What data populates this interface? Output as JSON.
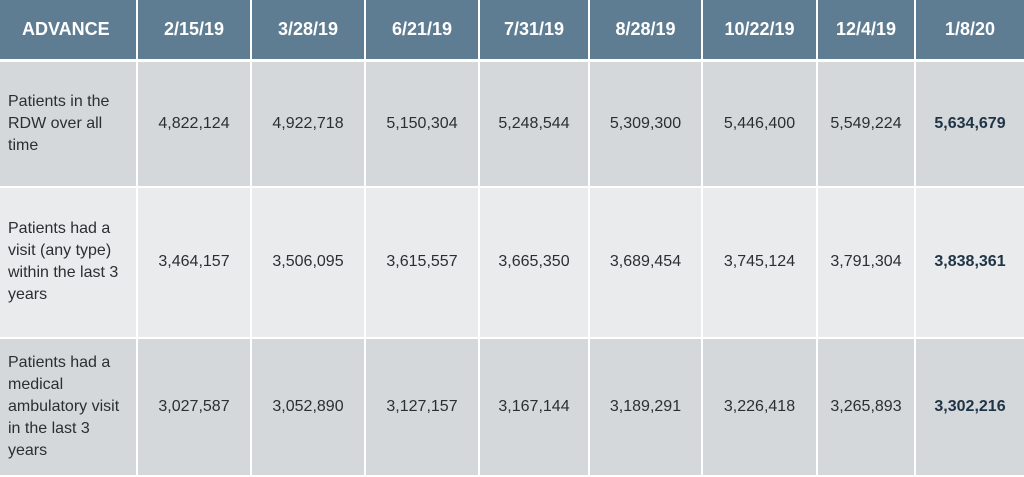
{
  "chart_data": {
    "type": "table",
    "corner_header": "ADVANCE",
    "columns": [
      "2/15/19",
      "3/28/19",
      "6/21/19",
      "7/31/19",
      "8/28/19",
      "10/22/19",
      "12/4/19",
      "1/8/20"
    ],
    "rows": [
      {
        "label": "Patients in the RDW over all time",
        "values": [
          "4,822,124",
          "4,922,718",
          "5,150,304",
          "5,248,544",
          "5,309,300",
          "5,446,400",
          "5,549,224",
          "5,634,679"
        ]
      },
      {
        "label": "Patients had a visit (any type) within the last 3 years",
        "values": [
          "3,464,157",
          "3,506,095",
          "3,615,557",
          "3,665,350",
          "3,689,454",
          "3,745,124",
          "3,791,304",
          "3,838,361"
        ]
      },
      {
        "label": "Patients had a medical ambulatory visit in the last 3 years",
        "values": [
          "3,027,587",
          "3,052,890",
          "3,127,157",
          "3,167,144",
          "3,189,291",
          "3,226,418",
          "3,265,893",
          "3,302,216"
        ]
      }
    ]
  },
  "colors": {
    "header_bg": "#5f7d92",
    "row_dark": "#d4d8db",
    "row_light": "#e9ebec"
  }
}
